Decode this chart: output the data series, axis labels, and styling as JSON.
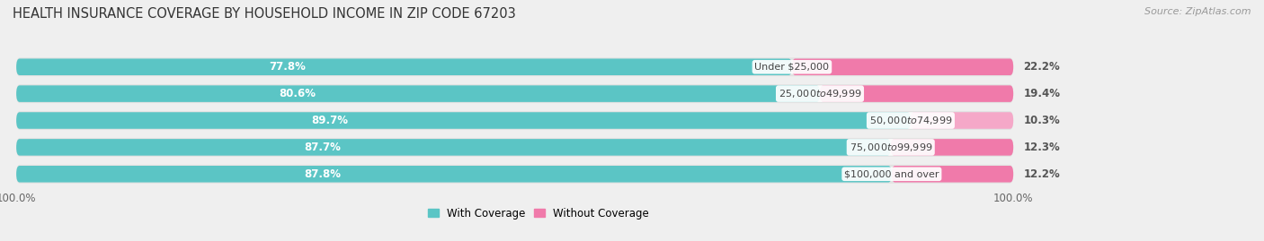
{
  "title": "HEALTH INSURANCE COVERAGE BY HOUSEHOLD INCOME IN ZIP CODE 67203",
  "source": "Source: ZipAtlas.com",
  "categories": [
    "Under $25,000",
    "$25,000 to $49,999",
    "$50,000 to $74,999",
    "$75,000 to $99,999",
    "$100,000 and over"
  ],
  "with_coverage": [
    77.8,
    80.6,
    89.7,
    87.7,
    87.8
  ],
  "without_coverage": [
    22.2,
    19.4,
    10.3,
    12.3,
    12.2
  ],
  "color_with": "#5bc5c5",
  "color_without": "#f07aaa",
  "color_without_light": "#f5a8c8",
  "background_color": "#efefef",
  "bar_bg_color": "#e8e8e8",
  "row_bg_color": "#e2e2e2",
  "title_fontsize": 10.5,
  "label_fontsize": 8.5,
  "legend_fontsize": 8.5,
  "source_fontsize": 8
}
